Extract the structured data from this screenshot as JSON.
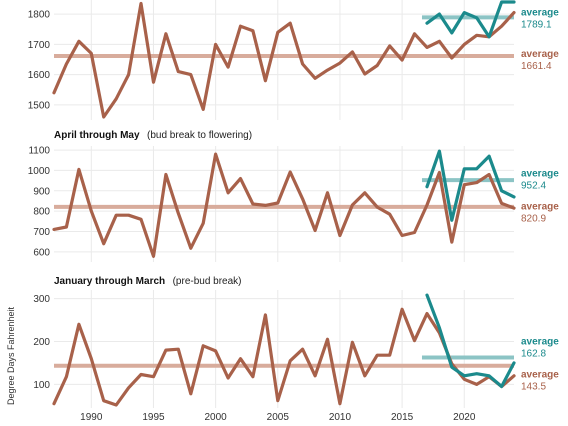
{
  "colors": {
    "series_brown": "#A8614A",
    "series_teal": "#1B8A8C",
    "avg_brown": "#D8AC9C",
    "avg_teal": "#8CC4C5",
    "grid": "#EAEAEA"
  },
  "chart_data": [
    {
      "type": "line",
      "panel": "top",
      "title_bold": "",
      "title_rest": "",
      "ylim": [
        1450,
        1850
      ],
      "yticks": [
        1500,
        1600,
        1700,
        1800
      ],
      "yticks_text": [
        "1500",
        "1600",
        "1700",
        "1800"
      ],
      "xlim": [
        1987,
        2024
      ],
      "x_brown": [
        1987,
        1988,
        1989,
        1990,
        1991,
        1992,
        1993,
        1994,
        1995,
        1996,
        1997,
        1998,
        1999,
        2000,
        2001,
        2002,
        2003,
        2004,
        2005,
        2006,
        2007,
        2008,
        2009,
        2010,
        2011,
        2012,
        2013,
        2014,
        2015,
        2016,
        2017,
        2018,
        2019,
        2020,
        2021,
        2022,
        2023,
        2024
      ],
      "y_brown": [
        1540,
        1635,
        1710,
        1670,
        1460,
        1520,
        1600,
        1835,
        1575,
        1735,
        1610,
        1600,
        1485,
        1700,
        1625,
        1760,
        1745,
        1580,
        1740,
        1770,
        1635,
        1588,
        1615,
        1638,
        1675,
        1602,
        1630,
        1695,
        1648,
        1735,
        1690,
        1710,
        1655,
        1700,
        1730,
        1725,
        1760,
        1805
      ],
      "x_teal": [
        2017,
        2018,
        2019,
        2020,
        2021,
        2022,
        2023,
        2024
      ],
      "y_teal": [
        1770,
        1800,
        1738,
        1805,
        1788,
        1725,
        1840,
        1840
      ],
      "avg_brown": 1661.4,
      "avg_brown_text": "1661.4",
      "avg_teal": 1789.1,
      "avg_teal_text": "1789.1",
      "avg_teal_xrange": [
        2017,
        2024
      ],
      "avg_label": "average"
    },
    {
      "type": "line",
      "panel": "middle",
      "title_bold": "April through May",
      "title_rest": "(bud break to flowering)",
      "ylim": [
        550,
        1120
      ],
      "yticks": [
        600,
        700,
        800,
        900,
        1000,
        1100
      ],
      "yticks_text": [
        "600",
        "700",
        "800",
        "900",
        "1000",
        "1100"
      ],
      "xlim": [
        1987,
        2024
      ],
      "x_brown": [
        1987,
        1988,
        1989,
        1990,
        1991,
        1992,
        1993,
        1994,
        1995,
        1996,
        1997,
        1998,
        1999,
        2000,
        2001,
        2002,
        2003,
        2004,
        2005,
        2006,
        2007,
        2008,
        2009,
        2010,
        2011,
        2012,
        2013,
        2014,
        2015,
        2016,
        2017,
        2018,
        2019,
        2020,
        2021,
        2022,
        2023,
        2024
      ],
      "y_brown": [
        710,
        722,
        1005,
        800,
        640,
        780,
        780,
        760,
        578,
        980,
        790,
        618,
        740,
        1080,
        890,
        960,
        835,
        828,
        840,
        992,
        860,
        705,
        890,
        680,
        830,
        890,
        820,
        785,
        680,
        695,
        830,
        990,
        648,
        930,
        940,
        980,
        838,
        815
      ],
      "x_teal": [
        2017,
        2018,
        2019,
        2020,
        2021,
        2022,
        2023,
        2024
      ],
      "y_teal": [
        920,
        1095,
        755,
        1008,
        1008,
        1070,
        900,
        870
      ],
      "avg_brown": 820.9,
      "avg_brown_text": "820.9",
      "avg_teal": 952.4,
      "avg_teal_text": "952.4",
      "avg_teal_xrange": [
        2017,
        2024
      ],
      "avg_label": "average"
    },
    {
      "type": "line",
      "panel": "bottom",
      "title_bold": "January through March",
      "title_rest": "(pre-bud break)",
      "ylim": [
        45,
        320
      ],
      "yticks": [
        100,
        200,
        300
      ],
      "yticks_text": [
        "100",
        "200",
        "300"
      ],
      "xlim": [
        1987,
        2024
      ],
      "xticks": [
        1990,
        1995,
        2000,
        2005,
        2010,
        2015,
        2020
      ],
      "xticks_text": [
        "1990",
        "1995",
        "2000",
        "2005",
        "2010",
        "2015",
        "2020"
      ],
      "ylabel": "Degree Days Fahrenheit",
      "x_brown": [
        1987,
        1988,
        1989,
        1990,
        1991,
        1992,
        1993,
        1994,
        1995,
        1996,
        1997,
        1998,
        1999,
        2000,
        2001,
        2002,
        2003,
        2004,
        2005,
        2006,
        2007,
        2008,
        2009,
        2010,
        2011,
        2012,
        2013,
        2014,
        2015,
        2016,
        2017,
        2018,
        2019,
        2020,
        2021,
        2022,
        2023,
        2024
      ],
      "y_brown": [
        55,
        118,
        240,
        160,
        62,
        52,
        92,
        123,
        118,
        180,
        182,
        78,
        190,
        178,
        115,
        160,
        118,
        262,
        62,
        155,
        182,
        120,
        205,
        55,
        198,
        120,
        168,
        168,
        275,
        202,
        265,
        220,
        148,
        112,
        100,
        118,
        95,
        120
      ],
      "x_teal": [
        2017,
        2018,
        2019,
        2020,
        2021,
        2022,
        2023,
        2024
      ],
      "y_teal": [
        308,
        232,
        140,
        120,
        125,
        120,
        95,
        150
      ],
      "avg_brown": 143.5,
      "avg_brown_text": "143.5",
      "avg_teal": 162.8,
      "avg_teal_text": "162.8",
      "avg_teal_xrange": [
        2017,
        2024
      ],
      "avg_label": "average"
    }
  ]
}
